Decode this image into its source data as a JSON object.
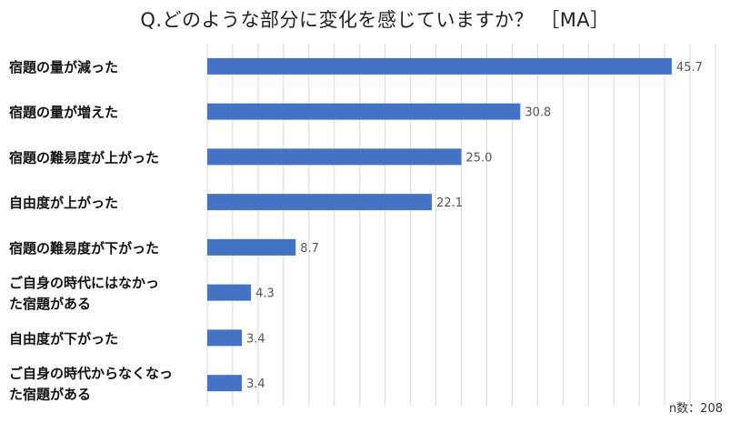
{
  "chart_data": {
    "type": "bar",
    "orientation": "horizontal",
    "title": "Q.どのような部分に変化を感じていますか？ ［MA］",
    "note": "n数：208",
    "categories": [
      [
        "宿題の量が減った"
      ],
      [
        "宿題の量が増えた"
      ],
      [
        "宿題の難易度が上がった"
      ],
      [
        "自由度が上がった"
      ],
      [
        "宿題の難易度が下がった"
      ],
      [
        "ご自身の時代にはなかっ",
        "た宿題がある"
      ],
      [
        "自由度が下がった"
      ],
      [
        "ご自身の時代からなくなっ",
        "た宿題がある"
      ]
    ],
    "values": [
      45.7,
      30.8,
      25.0,
      22.1,
      8.7,
      4.3,
      3.4,
      3.4
    ],
    "value_labels": [
      "45.7",
      "30.8",
      "25.0",
      "22.1",
      "8.7",
      "4.3",
      "3.4",
      "3.4"
    ],
    "xlim": [
      0,
      50
    ],
    "grid_step": 2.5,
    "grid": true,
    "xlabel": "",
    "ylabel": "",
    "bar_color": "#4472c4",
    "grid_color": "#d9d9d9"
  }
}
